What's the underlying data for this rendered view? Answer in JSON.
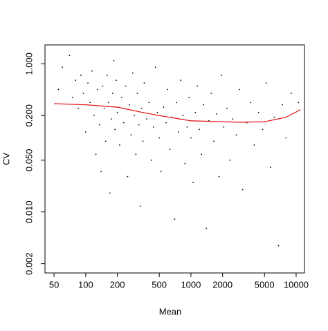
{
  "chart_data": {
    "type": "scatter",
    "xlabel": "Mean",
    "ylabel": "CV",
    "xlog": true,
    "ylog": true,
    "xlim": [
      41,
      12000
    ],
    "ylim": [
      0.0015,
      1.8
    ],
    "xticks": [
      50,
      100,
      200,
      500,
      1000,
      2000,
      5000,
      10000
    ],
    "yticks": [
      {
        "value": 0.002,
        "label": "0.002"
      },
      {
        "value": 0.01,
        "label": "0.010"
      },
      {
        "value": 0.05,
        "label": "0.050"
      },
      {
        "value": 0.2,
        "label": "0.200"
      },
      {
        "value": 1,
        "label": "1.000"
      }
    ],
    "series": [
      {
        "type": "scatter",
        "color": "#000000",
        "x": [
          55,
          60,
          70,
          75,
          80,
          85,
          90,
          95,
          100,
          105,
          110,
          115,
          120,
          125,
          130,
          135,
          140,
          145,
          150,
          155,
          160,
          165,
          170,
          175,
          180,
          185,
          190,
          195,
          200,
          210,
          220,
          230,
          240,
          250,
          260,
          270,
          280,
          290,
          300,
          310,
          320,
          330,
          340,
          350,
          360,
          380,
          400,
          420,
          440,
          460,
          480,
          500,
          520,
          550,
          580,
          600,
          630,
          660,
          700,
          730,
          760,
          800,
          840,
          880,
          920,
          960,
          1000,
          1050,
          1100,
          1150,
          1200,
          1260,
          1320,
          1400,
          1480,
          1560,
          1650,
          1750,
          1850,
          1950,
          2050,
          2200,
          2350,
          2500,
          2700,
          2900,
          3100,
          3400,
          3700,
          4000,
          4400,
          4800,
          5200,
          5700,
          6200,
          6800,
          7400,
          8000,
          9000,
          10500
        ],
        "y": [
          0.45,
          0.9,
          1.3,
          0.35,
          0.6,
          0.25,
          0.7,
          0.4,
          0.12,
          0.55,
          0.3,
          0.8,
          0.2,
          0.06,
          0.45,
          0.15,
          0.035,
          0.5,
          0.25,
          0.09,
          0.7,
          0.3,
          0.018,
          0.18,
          0.4,
          1.1,
          0.13,
          0.6,
          0.22,
          0.08,
          0.35,
          0.16,
          0.5,
          0.03,
          0.28,
          0.11,
          0.75,
          0.2,
          0.06,
          0.4,
          0.15,
          0.012,
          0.25,
          0.09,
          0.55,
          0.18,
          0.3,
          0.05,
          0.14,
          0.9,
          0.22,
          0.1,
          0.035,
          0.26,
          0.16,
          0.45,
          0.07,
          0.19,
          0.008,
          0.3,
          0.12,
          0.6,
          0.2,
          0.045,
          0.14,
          0.35,
          0.1,
          0.025,
          0.22,
          0.5,
          0.13,
          0.06,
          0.28,
          0.006,
          0.17,
          0.4,
          0.09,
          0.21,
          0.03,
          0.7,
          0.14,
          0.25,
          0.05,
          0.18,
          0.11,
          0.45,
          0.02,
          0.16,
          0.3,
          0.08,
          0.22,
          0.13,
          0.55,
          0.04,
          0.19,
          0.0035,
          0.28,
          0.1,
          0.4,
          0.3
        ]
      },
      {
        "type": "line",
        "color": "#e41a1c",
        "x": [
          50,
          100,
          200,
          350,
          500,
          1000,
          2000,
          3000,
          5000,
          8000,
          11000
        ],
        "y": [
          0.29,
          0.28,
          0.26,
          0.22,
          0.2,
          0.17,
          0.165,
          0.163,
          0.165,
          0.19,
          0.24
        ]
      }
    ]
  }
}
